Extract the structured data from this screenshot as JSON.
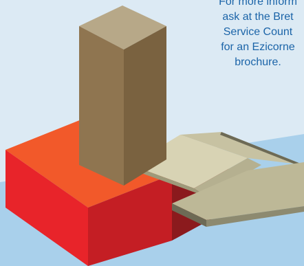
{
  "info": {
    "lines": [
      "For more inform",
      "ask at the Bret",
      "Service Count",
      "for an Ezicorne",
      "brochure."
    ]
  },
  "colors": {
    "background_light": "#dceaf4",
    "water_blue": "#a9d0eb",
    "plinth_red": "#e8242a",
    "plinth_top_orange": "#f2592a",
    "column_brown": "#8f7550",
    "column_top": "#b7a888",
    "cornice_grey": "#c7c2a2",
    "text_blue": "#1b64a8"
  }
}
